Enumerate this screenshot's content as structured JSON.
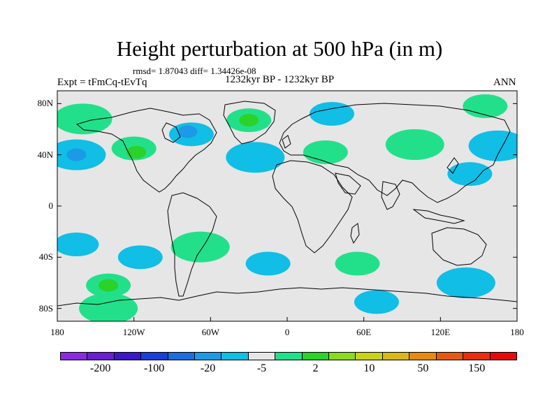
{
  "title": "Height perturbation at 500 hPa (in m)",
  "stats_line": "rmsd= 1.87043 diff= 1.34426e-08",
  "left_label": "Expt = tFmCq-tEvTq",
  "center_label": "1232kyr BP - 1232kyr BP",
  "right_label": "ANN",
  "lat_ticks": [
    {
      "label": "80N",
      "value": 80
    },
    {
      "label": "40N",
      "value": 40
    },
    {
      "label": "0",
      "value": 0
    },
    {
      "label": "40S",
      "value": -40
    },
    {
      "label": "80S",
      "value": -80
    }
  ],
  "lon_ticks": [
    {
      "label": "180",
      "value": -180
    },
    {
      "label": "120W",
      "value": -120
    },
    {
      "label": "60W",
      "value": -60
    },
    {
      "label": "0",
      "value": 0
    },
    {
      "label": "60E",
      "value": 60
    },
    {
      "label": "120E",
      "value": 120
    },
    {
      "label": "180",
      "value": 180
    }
  ],
  "colorbar": {
    "colors": [
      "#8a2be2",
      "#6a1ed0",
      "#3a18c8",
      "#1c3ed8",
      "#1c6ee0",
      "#1c9ae6",
      "#10bee6",
      "#e6e6e6",
      "#22e08a",
      "#2ad22a",
      "#8ada20",
      "#c8d21a",
      "#d8b818",
      "#e68a10",
      "#e65a10",
      "#e6300c",
      "#e60a0a"
    ],
    "labels": [
      "-200",
      "-100",
      "-20",
      "-5",
      "2",
      "10",
      "50",
      "150"
    ]
  },
  "chart_data": {
    "type": "contour-map",
    "variable": "Height perturbation at 500 hPa",
    "units": "m",
    "projection": "cylindrical equidistant",
    "xlim": [
      -180,
      180
    ],
    "ylim": [
      -90,
      90
    ],
    "background_level_color": "#e6e6e6",
    "anomalies": [
      {
        "lon": -160,
        "lat": 68,
        "sign": "positive",
        "level_color": "#22e08a"
      },
      {
        "lon": -120,
        "lat": 45,
        "sign": "positive",
        "level_color": "#22e08a"
      },
      {
        "lon": -118,
        "lat": 42,
        "sign": "positive",
        "level_color": "#2ad22a"
      },
      {
        "lon": -165,
        "lat": 40,
        "sign": "negative",
        "level_color": "#10bee6"
      },
      {
        "lon": -165,
        "lat": 40,
        "sign": "negative",
        "level_color": "#1c9ae6"
      },
      {
        "lon": -75,
        "lat": 56,
        "sign": "negative",
        "level_color": "#10bee6"
      },
      {
        "lon": -78,
        "lat": 58,
        "sign": "negative",
        "level_color": "#1c9ae6"
      },
      {
        "lon": -30,
        "lat": 67,
        "sign": "positive",
        "level_color": "#22e08a"
      },
      {
        "lon": -30,
        "lat": 67,
        "sign": "positive",
        "level_color": "#2ad22a"
      },
      {
        "lon": -25,
        "lat": 38,
        "sign": "negative",
        "level_color": "#10bee6"
      },
      {
        "lon": 35,
        "lat": 72,
        "sign": "negative",
        "level_color": "#10bee6"
      },
      {
        "lon": 30,
        "lat": 42,
        "sign": "positive",
        "level_color": "#22e08a"
      },
      {
        "lon": 100,
        "lat": 48,
        "sign": "positive",
        "level_color": "#22e08a"
      },
      {
        "lon": 155,
        "lat": 78,
        "sign": "positive",
        "level_color": "#22e08a"
      },
      {
        "lon": 143,
        "lat": 25,
        "sign": "negative",
        "level_color": "#10bee6"
      },
      {
        "lon": 165,
        "lat": 47,
        "sign": "negative",
        "level_color": "#10bee6"
      },
      {
        "lon": -165,
        "lat": -30,
        "sign": "negative",
        "level_color": "#10bee6"
      },
      {
        "lon": -115,
        "lat": -40,
        "sign": "negative",
        "level_color": "#10bee6"
      },
      {
        "lon": -68,
        "lat": -32,
        "sign": "positive",
        "level_color": "#22e08a"
      },
      {
        "lon": -140,
        "lat": -62,
        "sign": "positive",
        "level_color": "#22e08a"
      },
      {
        "lon": -140,
        "lat": -62,
        "sign": "positive",
        "level_color": "#2ad22a"
      },
      {
        "lon": -140,
        "lat": -80,
        "sign": "positive",
        "level_color": "#22e08a"
      },
      {
        "lon": -15,
        "lat": -45,
        "sign": "negative",
        "level_color": "#10bee6"
      },
      {
        "lon": 55,
        "lat": -45,
        "sign": "positive",
        "level_color": "#22e08a"
      },
      {
        "lon": 140,
        "lat": -60,
        "sign": "negative",
        "level_color": "#10bee6"
      },
      {
        "lon": 70,
        "lat": -75,
        "sign": "negative",
        "level_color": "#10bee6"
      }
    ]
  }
}
